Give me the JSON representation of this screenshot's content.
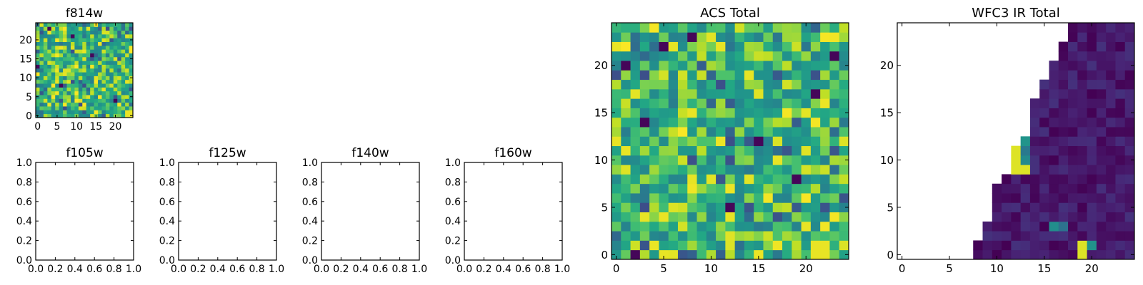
{
  "figure": {
    "background": "#ffffff",
    "colormap": "viridis"
  },
  "chart_data": [
    {
      "id": "f814w",
      "type": "heatmap",
      "title": "f814w",
      "grid_size": [
        25,
        25
      ],
      "xlim": [
        -0.5,
        24.5
      ],
      "ylim": [
        -0.5,
        24.5
      ],
      "xticks": [
        0,
        5,
        10,
        15,
        20
      ],
      "yticks": [
        0,
        5,
        10,
        15,
        20
      ],
      "pattern": "random",
      "value_range": [
        0.55,
        1.0
      ],
      "seed": 11,
      "bright_cells": [
        [
          23,
          0
        ],
        [
          24,
          0
        ],
        [
          23,
          1
        ],
        [
          24,
          1
        ]
      ],
      "dark_cells": [
        [
          0,
          13
        ],
        [
          9,
          21
        ],
        [
          20,
          4
        ],
        [
          3,
          23
        ],
        [
          14,
          16
        ],
        [
          6,
          8
        ]
      ]
    },
    {
      "id": "f105w",
      "type": "empty",
      "title": "f105w",
      "xlim": [
        0,
        1
      ],
      "ylim": [
        0,
        1
      ],
      "xticks": [
        0.0,
        0.2,
        0.4,
        0.6,
        0.8,
        1.0
      ],
      "yticks": [
        0.0,
        0.2,
        0.4,
        0.6,
        0.8,
        1.0
      ],
      "xtick_labels": [
        "0.0",
        "0.2",
        "0.4",
        "0.6",
        "0.8",
        "1.0"
      ],
      "ytick_labels": [
        "0.0",
        "0.2",
        "0.4",
        "0.6",
        "0.8",
        "1.0"
      ]
    },
    {
      "id": "f125w",
      "type": "empty",
      "title": "f125w",
      "xlim": [
        0,
        1
      ],
      "ylim": [
        0,
        1
      ],
      "xticks": [
        0.0,
        0.2,
        0.4,
        0.6,
        0.8,
        1.0
      ],
      "yticks": [
        0.0,
        0.2,
        0.4,
        0.6,
        0.8,
        1.0
      ],
      "xtick_labels": [
        "0.0",
        "0.2",
        "0.4",
        "0.6",
        "0.8",
        "1.0"
      ],
      "ytick_labels": [
        "0.0",
        "0.2",
        "0.4",
        "0.6",
        "0.8",
        "1.0"
      ]
    },
    {
      "id": "f140w",
      "type": "empty",
      "title": "f140w",
      "xlim": [
        0,
        1
      ],
      "ylim": [
        0,
        1
      ],
      "xticks": [
        0.0,
        0.2,
        0.4,
        0.6,
        0.8,
        1.0
      ],
      "yticks": [
        0.0,
        0.2,
        0.4,
        0.6,
        0.8,
        1.0
      ],
      "xtick_labels": [
        "0.0",
        "0.2",
        "0.4",
        "0.6",
        "0.8",
        "1.0"
      ],
      "ytick_labels": [
        "0.0",
        "0.2",
        "0.4",
        "0.6",
        "0.8",
        "1.0"
      ]
    },
    {
      "id": "f160w",
      "type": "empty",
      "title": "f160w",
      "xlim": [
        0,
        1
      ],
      "ylim": [
        0,
        1
      ],
      "xticks": [
        0.0,
        0.2,
        0.4,
        0.6,
        0.8,
        1.0
      ],
      "yticks": [
        0.0,
        0.2,
        0.4,
        0.6,
        0.8,
        1.0
      ],
      "xtick_labels": [
        "0.0",
        "0.2",
        "0.4",
        "0.6",
        "0.8",
        "1.0"
      ],
      "ytick_labels": [
        "0.0",
        "0.2",
        "0.4",
        "0.6",
        "0.8",
        "1.0"
      ]
    },
    {
      "id": "acs_total",
      "type": "heatmap",
      "title": "ACS Total",
      "grid_size": [
        25,
        25
      ],
      "xlim": [
        -0.5,
        24.5
      ],
      "ylim": [
        -0.5,
        24.5
      ],
      "xticks": [
        0,
        5,
        10,
        15,
        20
      ],
      "yticks": [
        0,
        5,
        10,
        15,
        20
      ],
      "pattern": "random",
      "value_range": [
        0.55,
        1.0
      ],
      "seed": 29,
      "bright_cells": [
        [
          21,
          0
        ],
        [
          22,
          0
        ],
        [
          22,
          1
        ],
        [
          21,
          1
        ],
        [
          20,
          3
        ],
        [
          14,
          19
        ],
        [
          11,
          22
        ],
        [
          17,
          10
        ],
        [
          3,
          4
        ],
        [
          8,
          15
        ]
      ],
      "dark_cells": [
        [
          2,
          0
        ],
        [
          21,
          17
        ],
        [
          23,
          21
        ],
        [
          1,
          20
        ],
        [
          3,
          14
        ],
        [
          8,
          23
        ],
        [
          12,
          5
        ],
        [
          19,
          8
        ],
        [
          5,
          22
        ],
        [
          15,
          12
        ]
      ]
    },
    {
      "id": "wfc3_ir_total",
      "type": "heatmap",
      "title": "WFC3 IR Total",
      "grid_size": [
        25,
        25
      ],
      "xlim": [
        -0.5,
        24.5
      ],
      "ylim": [
        -0.5,
        24.5
      ],
      "xticks": [
        0,
        5,
        10,
        15,
        20
      ],
      "yticks": [
        0,
        5,
        10,
        15,
        20
      ],
      "pattern": "wedge",
      "value_range": [
        0.0,
        0.18
      ],
      "seed": 47,
      "row_start_x": [
        8,
        8,
        9,
        9,
        10,
        10,
        10,
        10,
        11,
        12,
        12,
        12,
        13,
        14,
        14,
        14,
        14,
        15,
        15,
        16,
        16,
        17,
        17,
        18,
        18
      ],
      "bright_cells": [
        [
          12,
          11
        ],
        [
          12,
          10
        ],
        [
          13,
          9
        ],
        [
          12,
          9
        ],
        [
          19,
          1
        ],
        [
          19,
          0
        ]
      ],
      "mid_cells": [
        [
          13,
          11
        ],
        [
          13,
          10
        ],
        [
          13,
          12
        ],
        [
          20,
          1
        ],
        [
          16,
          3
        ],
        [
          17,
          3
        ]
      ]
    }
  ]
}
